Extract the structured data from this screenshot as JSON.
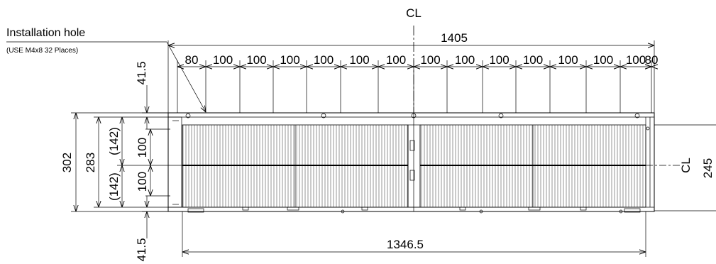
{
  "labels": {
    "installation_hole": "Installation hole",
    "installation_note": "(USE M4x8 32 Places)",
    "centerline_top": "CL",
    "centerline_right": "CL"
  },
  "dimensions": {
    "overall_width": "1405",
    "bottom_width": "1346.5",
    "top_spacings": [
      "80",
      "100",
      "100",
      "100",
      "100",
      "100",
      "100",
      "100",
      "100",
      "100",
      "100",
      "100",
      "100",
      "100",
      "80"
    ],
    "top_offset": "41.5",
    "bottom_offset": "41.5",
    "height_302": "302",
    "height_283": "283",
    "half_142_top": "(142)",
    "half_142_bottom": "(142)",
    "spacing_100_top": "100",
    "spacing_100_bottom": "100",
    "right_245": "245"
  }
}
